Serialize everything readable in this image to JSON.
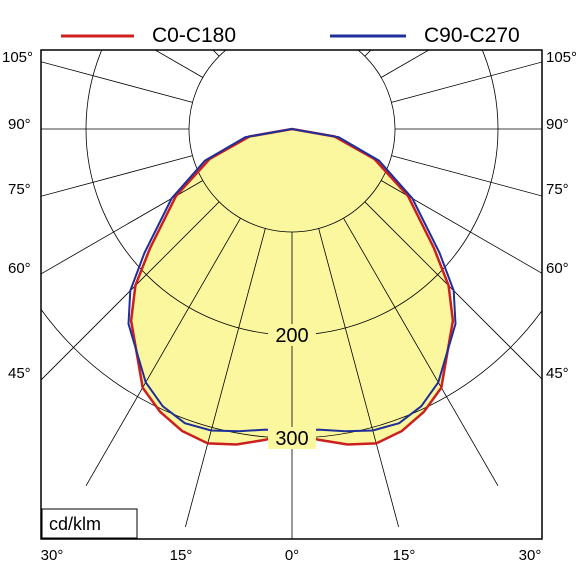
{
  "chart_data": {
    "type": "polar",
    "unit_label": "cd/klm",
    "legend": {
      "position": "top",
      "entries": [
        "C0-C180",
        "C90-C270"
      ]
    },
    "radial_ticks": [
      100,
      200,
      300
    ],
    "radial_tick_labels": [
      "200",
      "300"
    ],
    "radial_max": 400,
    "angle_ticks_bottom": [
      "30°",
      "15°",
      "0°",
      "15°",
      "30°"
    ],
    "angle_ticks_side": [
      "105°",
      "90°",
      "75°",
      "60°",
      "45°"
    ],
    "grid": true,
    "colors": {
      "fill": "#fbf79e",
      "C0-C180": "#cc1f1f",
      "C90-C270": "#1f2f99",
      "grid": "#000000"
    },
    "series": [
      {
        "name": "C0-C180",
        "angles": [
          -90,
          -80,
          -70,
          -60,
          -50,
          -45,
          -40,
          -30,
          -25,
          -20,
          -15,
          -10,
          -5,
          0,
          5,
          10,
          15,
          20,
          25,
          30,
          40,
          45,
          50,
          60,
          70,
          80,
          90
        ],
        "values": [
          0,
          42,
          85,
          130,
          180,
          215,
          243,
          290,
          303,
          312,
          316,
          311,
          303,
          295,
          303,
          311,
          316,
          312,
          303,
          290,
          243,
          215,
          180,
          130,
          85,
          42,
          0
        ]
      },
      {
        "name": "C90-C270",
        "angles": [
          -90,
          -80,
          -70,
          -60,
          -50,
          -45,
          -40,
          -30,
          -25,
          -20,
          -15,
          -10,
          -5,
          0,
          5,
          10,
          15,
          20,
          25,
          30,
          40,
          45,
          50,
          60,
          70,
          80,
          90
        ],
        "values": [
          0,
          46,
          90,
          135,
          187,
          222,
          247,
          284,
          297,
          304,
          303,
          298,
          293,
          295,
          293,
          298,
          303,
          304,
          297,
          284,
          247,
          222,
          187,
          135,
          90,
          46,
          0
        ]
      }
    ]
  }
}
